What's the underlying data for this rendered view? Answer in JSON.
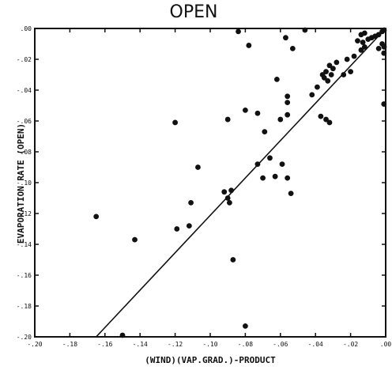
{
  "chart_data": {
    "type": "scatter",
    "title": "OPEN",
    "xlabel": "(WIND)(VAP.GRAD.)-PRODUCT",
    "ylabel": "EVAPORATION RATE (OPEN)",
    "xlim": [
      -0.2,
      0.0
    ],
    "ylim": [
      -0.2,
      0.0
    ],
    "x_ticks": [
      -0.2,
      -0.18,
      -0.16,
      -0.14,
      -0.12,
      -0.1,
      -0.08,
      -0.06,
      -0.04,
      -0.02,
      0.0
    ],
    "y_ticks": [
      0.0,
      -0.02,
      -0.04,
      -0.06,
      -0.08,
      -0.1,
      -0.12,
      -0.14,
      -0.16,
      -0.18,
      -0.2
    ],
    "x_tick_labels": [
      "-.20",
      "-.18",
      "-.16",
      "-.14",
      "-.12",
      "-.10",
      "-.08",
      "-.06",
      "-.04",
      "-.02",
      ".00"
    ],
    "y_tick_labels": [
      ".00",
      "-.02",
      "-.04",
      "-.06",
      "-.08",
      "-.10",
      "-.12",
      "-.14",
      "-.16",
      "-.18",
      "-.20"
    ],
    "grid": false,
    "fit_line": {
      "x": [
        -0.165,
        0.0
      ],
      "y": [
        -0.2,
        0.0
      ]
    },
    "points": [
      {
        "x": -0.0005,
        "y": -0.0005
      },
      {
        "x": -0.002,
        "y": -0.002
      },
      {
        "x": -0.004,
        "y": -0.004
      },
      {
        "x": -0.006,
        "y": -0.005
      },
      {
        "x": -0.008,
        "y": -0.006
      },
      {
        "x": -0.01,
        "y": -0.007
      },
      {
        "x": -0.012,
        "y": -0.003
      },
      {
        "x": -0.014,
        "y": -0.004
      },
      {
        "x": -0.013,
        "y": -0.009
      },
      {
        "x": -0.016,
        "y": -0.008
      },
      {
        "x": -0.002,
        "y": -0.01
      },
      {
        "x": -0.0005,
        "y": -0.012
      },
      {
        "x": -0.004,
        "y": -0.013
      },
      {
        "x": -0.001,
        "y": -0.016
      },
      {
        "x": -0.012,
        "y": -0.012
      },
      {
        "x": -0.018,
        "y": -0.018
      },
      {
        "x": -0.014,
        "y": -0.014
      },
      {
        "x": -0.022,
        "y": -0.02
      },
      {
        "x": -0.028,
        "y": -0.022
      },
      {
        "x": -0.03,
        "y": -0.026
      },
      {
        "x": -0.032,
        "y": -0.024
      },
      {
        "x": -0.034,
        "y": -0.028
      },
      {
        "x": -0.036,
        "y": -0.03
      },
      {
        "x": -0.035,
        "y": -0.032
      },
      {
        "x": -0.033,
        "y": -0.034
      },
      {
        "x": -0.02,
        "y": -0.028
      },
      {
        "x": -0.024,
        "y": -0.03
      },
      {
        "x": -0.031,
        "y": -0.03
      },
      {
        "x": -0.039,
        "y": -0.038
      },
      {
        "x": -0.042,
        "y": -0.043
      },
      {
        "x": -0.046,
        "y": -0.001
      },
      {
        "x": -0.053,
        "y": -0.013
      },
      {
        "x": -0.057,
        "y": -0.006
      },
      {
        "x": -0.056,
        "y": -0.044
      },
      {
        "x": -0.056,
        "y": -0.048
      },
      {
        "x": -0.062,
        "y": -0.033
      },
      {
        "x": -0.06,
        "y": -0.059
      },
      {
        "x": -0.056,
        "y": -0.056
      },
      {
        "x": -0.037,
        "y": -0.057
      },
      {
        "x": -0.034,
        "y": -0.059
      },
      {
        "x": -0.032,
        "y": -0.061
      },
      {
        "x": -0.001,
        "y": -0.049
      },
      {
        "x": -0.073,
        "y": -0.055
      },
      {
        "x": -0.069,
        "y": -0.067
      },
      {
        "x": -0.066,
        "y": -0.084
      },
      {
        "x": -0.059,
        "y": -0.088
      },
      {
        "x": -0.056,
        "y": -0.097
      },
      {
        "x": -0.054,
        "y": -0.107
      },
      {
        "x": -0.063,
        "y": -0.096
      },
      {
        "x": -0.07,
        "y": -0.097
      },
      {
        "x": -0.073,
        "y": -0.088
      },
      {
        "x": -0.08,
        "y": -0.053
      },
      {
        "x": -0.078,
        "y": -0.011
      },
      {
        "x": -0.084,
        "y": -0.002
      },
      {
        "x": -0.09,
        "y": -0.059
      },
      {
        "x": -0.088,
        "y": -0.105
      },
      {
        "x": -0.092,
        "y": -0.106
      },
      {
        "x": -0.09,
        "y": -0.11
      },
      {
        "x": -0.089,
        "y": -0.113
      },
      {
        "x": -0.087,
        "y": -0.15
      },
      {
        "x": -0.08,
        "y": -0.193
      },
      {
        "x": -0.107,
        "y": -0.09
      },
      {
        "x": -0.111,
        "y": -0.113
      },
      {
        "x": -0.112,
        "y": -0.128
      },
      {
        "x": -0.119,
        "y": -0.13
      },
      {
        "x": -0.12,
        "y": -0.061
      },
      {
        "x": -0.143,
        "y": -0.137
      },
      {
        "x": -0.15,
        "y": -0.206
      },
      {
        "x": -0.165,
        "y": -0.122
      }
    ]
  }
}
